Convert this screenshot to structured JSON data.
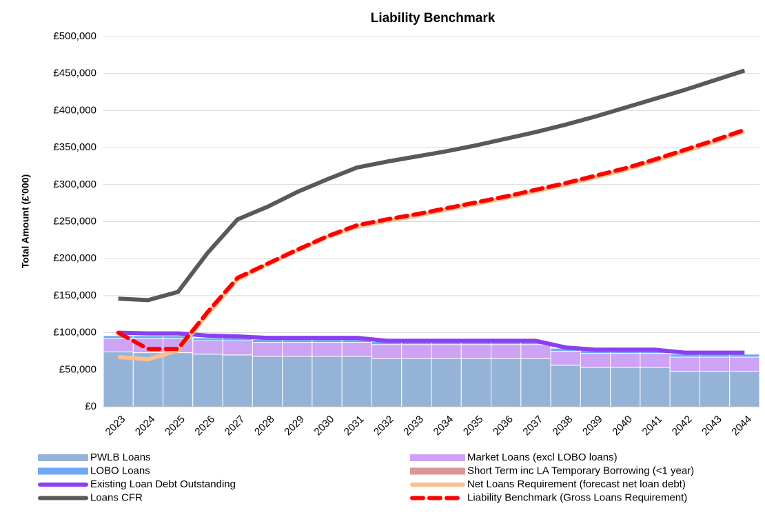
{
  "chart_data": {
    "type": "bar",
    "title": "Liability Benchmark",
    "y_label": "Total Amount (£'000)",
    "categories": [
      "2023",
      "2024",
      "2025",
      "2026",
      "2027",
      "2028",
      "2029",
      "2030",
      "2031",
      "2032",
      "2033",
      "2034",
      "2035",
      "2036",
      "2037",
      "2038",
      "2039",
      "2040",
      "2041",
      "2042",
      "2043",
      "2044"
    ],
    "ylim": [
      0,
      500000
    ],
    "yticks": [
      {
        "value": 0,
        "label": "£0"
      },
      {
        "value": 50000,
        "label": "£50,000"
      },
      {
        "value": 100000,
        "label": "£100,000"
      },
      {
        "value": 150000,
        "label": "£150,000"
      },
      {
        "value": 200000,
        "label": "£200,000"
      },
      {
        "value": 250000,
        "label": "£250,000"
      },
      {
        "value": 300000,
        "label": "£300,000"
      },
      {
        "value": 350000,
        "label": "£350,000"
      },
      {
        "value": 400000,
        "label": "£400,000"
      },
      {
        "value": 450000,
        "label": "£450,000"
      },
      {
        "value": 500000,
        "label": "£500,000"
      }
    ],
    "grid": true,
    "series": [
      {
        "name": "PWLB Loans",
        "type": "bar",
        "color": "#95b3d7",
        "values": [
          74000,
          73000,
          73000,
          71000,
          70000,
          68000,
          68000,
          68000,
          68000,
          65000,
          65000,
          65000,
          65000,
          65000,
          65000,
          56000,
          53000,
          53000,
          53000,
          48000,
          48000,
          48000
        ]
      },
      {
        "name": "Market Loans (excl LOBO loans)",
        "type": "bar",
        "color": "#cda3f5",
        "values": [
          18000,
          19000,
          19000,
          18000,
          19000,
          19000,
          19000,
          19000,
          19000,
          19000,
          19000,
          19000,
          19000,
          19000,
          19000,
          19000,
          19000,
          19000,
          19000,
          19000,
          19000,
          19000
        ]
      },
      {
        "name": "LOBO Loans",
        "type": "bar",
        "color": "#6fa8f5",
        "values": [
          4000,
          4000,
          4000,
          4000,
          4000,
          4000,
          4000,
          4000,
          4000,
          4000,
          4000,
          4000,
          4000,
          4000,
          4000,
          4000,
          4000,
          4000,
          4000,
          4000,
          4000,
          4000
        ]
      },
      {
        "name": "Short Term inc LA Temporary Borrowing (<1 year)",
        "type": "bar",
        "color": "#d99795",
        "values": [
          0,
          0,
          0,
          0,
          0,
          0,
          0,
          0,
          0,
          0,
          0,
          0,
          0,
          0,
          0,
          0,
          0,
          0,
          0,
          0,
          0,
          0
        ]
      },
      {
        "name": "Existing Loan Debt Outstanding",
        "type": "line",
        "color": "#8b3ff0",
        "values": [
          100000,
          99000,
          99000,
          96000,
          95000,
          93000,
          93000,
          93000,
          93000,
          89000,
          89000,
          89000,
          89000,
          89000,
          89000,
          80000,
          77000,
          77000,
          77000,
          73000,
          73000,
          73000
        ]
      },
      {
        "name": "Net Loans Requirement (forecast net loan debt)",
        "type": "line",
        "color": "#fac090",
        "values": [
          67000,
          64000,
          76000,
          125000,
          172000,
          192000,
          211000,
          229000,
          243000,
          251000,
          258000,
          266000,
          274000,
          282000,
          291000,
          300000,
          310000,
          320000,
          332000,
          345000,
          358000,
          372000
        ]
      },
      {
        "name": "Loans CFR",
        "type": "line",
        "color": "#595959",
        "values": [
          146000,
          144000,
          155000,
          208000,
          253000,
          270000,
          290000,
          307000,
          323000,
          331000,
          338000,
          345000,
          353000,
          362000,
          371000,
          381000,
          392000,
          404000,
          416000,
          428000,
          441000,
          454000
        ]
      },
      {
        "name": "Liability Benchmark (Gross Loans Requirement)",
        "type": "line",
        "dashed": true,
        "color": "#ff0000",
        "values": [
          100000,
          78000,
          78000,
          128000,
          174000,
          193000,
          212000,
          230000,
          245000,
          253000,
          260000,
          268000,
          276000,
          284000,
          293000,
          302000,
          312000,
          322000,
          334000,
          347000,
          360000,
          374000
        ]
      }
    ]
  }
}
